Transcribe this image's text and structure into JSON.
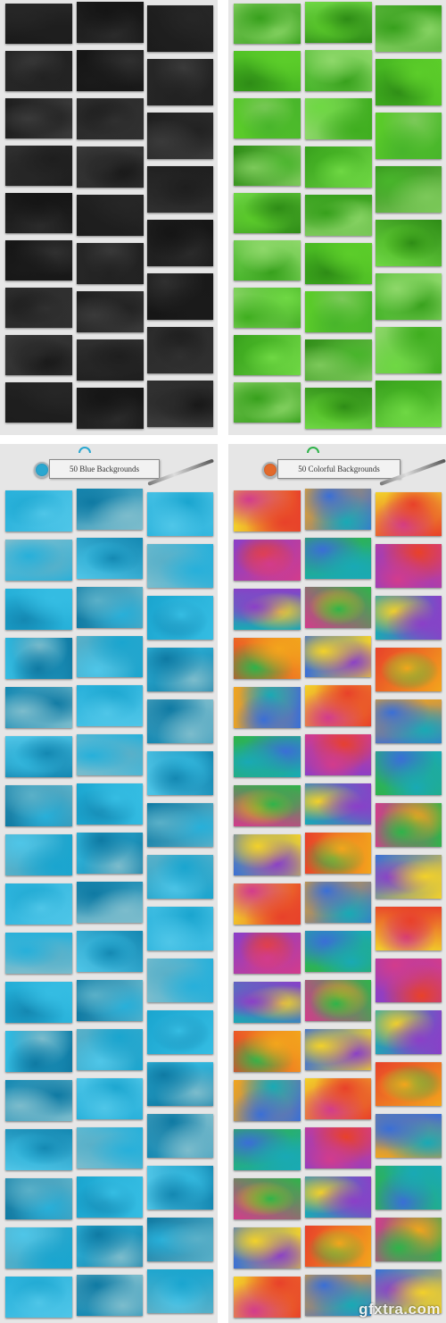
{
  "watermark": "gfxtra.com",
  "panels": [
    {
      "id": "panel-black",
      "label": "",
      "badge_color": "",
      "palette": [
        "#1a1a1a",
        "#262626",
        "#1e1e1e",
        "#303030",
        "#222222",
        "#151515",
        "#2b2b2b",
        "#3a3a3a"
      ]
    },
    {
      "id": "panel-green",
      "label": "",
      "badge_color": "",
      "palette": [
        "#3fae1f",
        "#5ccd2a",
        "#2e8c16",
        "#6fd844",
        "#48b52b",
        "#8ed86a",
        "#37a01c",
        "#7cc95a"
      ]
    },
    {
      "id": "panel-blue",
      "label": "50 Blue Backgrounds",
      "badge_color": "#2aa7d0",
      "palette": [
        "#1aa5cf",
        "#35bde3",
        "#1488b2",
        "#4fc6e8",
        "#0f7aa3",
        "#5ab0c8",
        "#27b0da",
        "#7cbccc"
      ]
    },
    {
      "id": "panel-colorful",
      "label": "50 Colorful Backgrounds",
      "badge_color": "#e26a2c",
      "palette": [
        "#e8412a",
        "#f3a51c",
        "#2fb34a",
        "#d23c8c",
        "#3a6fd6",
        "#f2d12a",
        "#8a3fc8",
        "#19a9b5"
      ]
    }
  ]
}
